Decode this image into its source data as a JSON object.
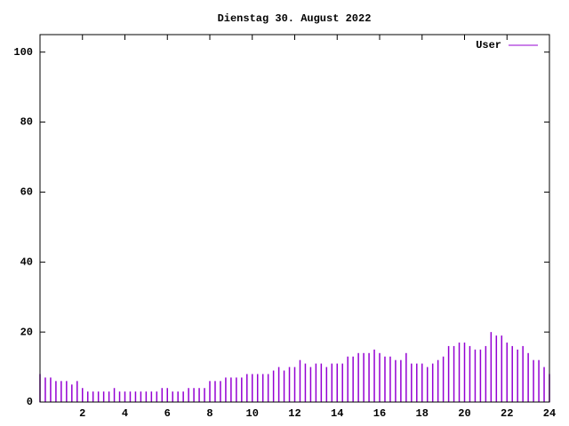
{
  "chart_data": {
    "type": "impulse",
    "title": "Dienstag 30. August 2022",
    "x": [
      0,
      0.25,
      0.5,
      0.75,
      1,
      1.25,
      1.5,
      1.75,
      2,
      2.25,
      2.5,
      2.75,
      3,
      3.25,
      3.5,
      3.75,
      4,
      4.25,
      4.5,
      4.75,
      5,
      5.25,
      5.5,
      5.75,
      6,
      6.25,
      6.5,
      6.75,
      7,
      7.25,
      7.5,
      7.75,
      8,
      8.25,
      8.5,
      8.75,
      9,
      9.25,
      9.5,
      9.75,
      10,
      10.25,
      10.5,
      10.75,
      11,
      11.25,
      11.5,
      11.75,
      12,
      12.25,
      12.5,
      12.75,
      13,
      13.25,
      13.5,
      13.75,
      14,
      14.25,
      14.5,
      14.75,
      15,
      15.25,
      15.5,
      15.75,
      16,
      16.25,
      16.5,
      16.75,
      17,
      17.25,
      17.5,
      17.75,
      18,
      18.25,
      18.5,
      18.75,
      19,
      19.25,
      19.5,
      19.75,
      20,
      20.25,
      20.5,
      20.75,
      21,
      21.25,
      21.5,
      21.75,
      22,
      22.25,
      22.5,
      22.75,
      23,
      23.25,
      23.5,
      23.75,
      24
    ],
    "series": [
      {
        "name": "User",
        "color": "#9400d3",
        "values": [
          8,
          7,
          7,
          6,
          6,
          6,
          5,
          6,
          4,
          3,
          3,
          3,
          3,
          3,
          4,
          3,
          3,
          3,
          3,
          3,
          3,
          3,
          3,
          4,
          4,
          3,
          3,
          3,
          4,
          4,
          4,
          4,
          6,
          6,
          6,
          7,
          7,
          7,
          7,
          8,
          8,
          8,
          8,
          8,
          9,
          10,
          9,
          10,
          10,
          12,
          11,
          10,
          11,
          11,
          10,
          11,
          11,
          11,
          13,
          13,
          14,
          14,
          14,
          15,
          14,
          13,
          13,
          12,
          12,
          14,
          11,
          11,
          11,
          10,
          11,
          12,
          13,
          16,
          16,
          17,
          17,
          16,
          15,
          15,
          16,
          20,
          19,
          19,
          17,
          16,
          15,
          16,
          14,
          12,
          12,
          10,
          8
        ]
      }
    ],
    "xlim": [
      0,
      24
    ],
    "xticks": [
      2,
      4,
      6,
      8,
      10,
      12,
      14,
      16,
      18,
      20,
      22,
      24
    ],
    "ylim": [
      0,
      105
    ],
    "yticks": [
      0,
      20,
      40,
      60,
      80,
      100
    ],
    "legend": "top-right"
  }
}
